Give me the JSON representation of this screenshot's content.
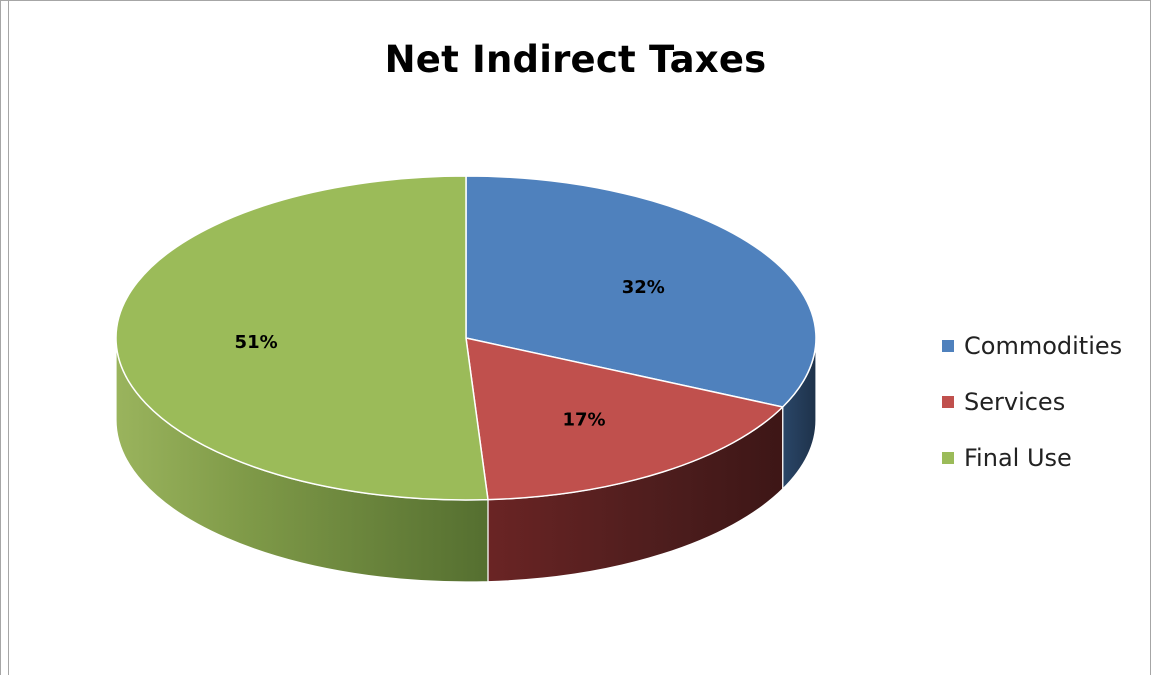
{
  "chart_data": {
    "type": "pie",
    "title": "Net Indirect Taxes",
    "categories": [
      "Commodities",
      "Services",
      "Final Use"
    ],
    "values": [
      32,
      17,
      51
    ],
    "labels": [
      "32%",
      "17%",
      "51%"
    ],
    "unit": "%",
    "legend_position": "right",
    "style": "3d",
    "colors": [
      "#4f81bd",
      "#c0504d",
      "#9bbb59"
    ]
  }
}
